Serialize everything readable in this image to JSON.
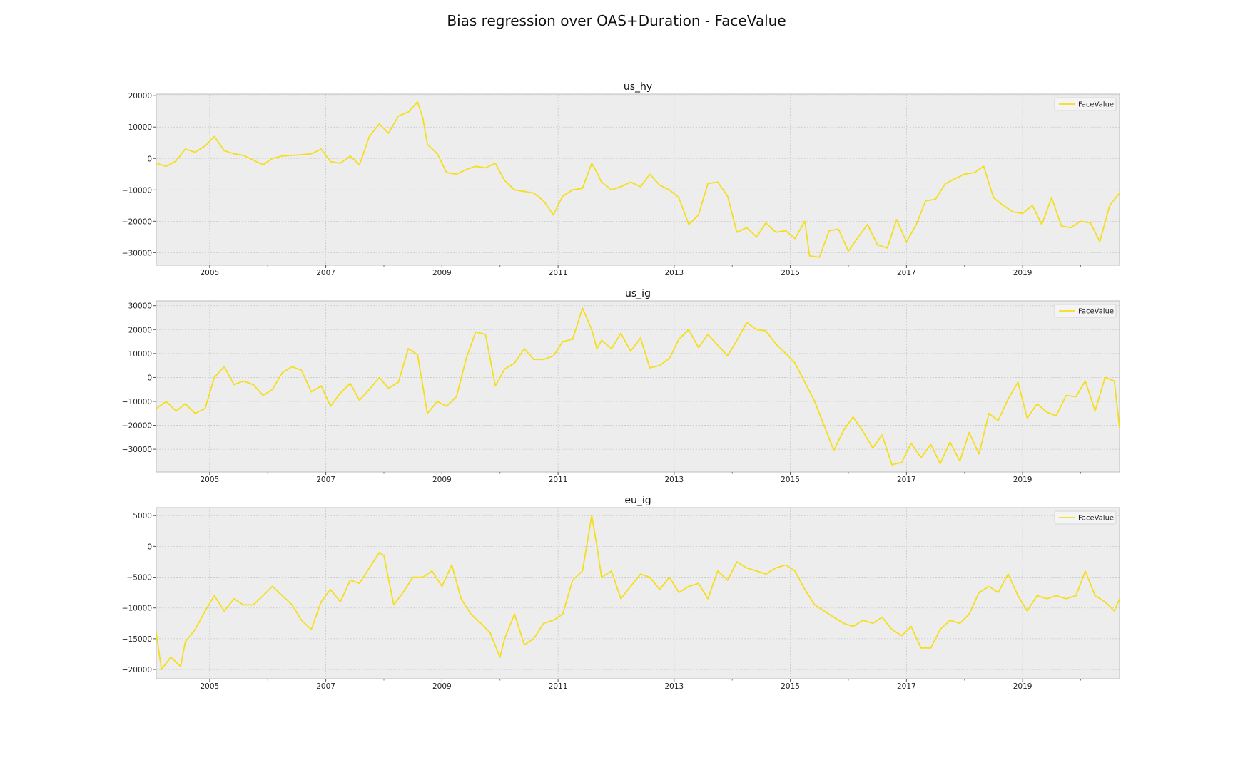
{
  "figure": {
    "title": "Bias regression over OAS+Duration - FaceValue"
  },
  "chart_data": [
    {
      "type": "line",
      "title": "us_hy",
      "legend": {
        "entries": [
          "FaceValue"
        ],
        "placement": "top-right"
      },
      "grid": true,
      "line_color": "#F5DE1B",
      "x_tick_labels": [
        "2005",
        "2007",
        "2009",
        "2011",
        "2013",
        "2015",
        "2017",
        "2019"
      ],
      "y_ticks": [
        20000,
        10000,
        0,
        -10000,
        -20000,
        -30000
      ],
      "y_tick_labels": [
        "20000",
        "10000",
        "0",
        "−10000",
        "−20000",
        "−30000"
      ],
      "xlim": [
        2004.08,
        2020.67
      ],
      "ylim": [
        -34000,
        20500
      ],
      "series": [
        {
          "name": "FaceValue",
          "x": [
            2004.08,
            2004.25,
            2004.42,
            2004.58,
            2004.75,
            2004.92,
            2005.08,
            2005.25,
            2005.42,
            2005.58,
            2005.75,
            2005.92,
            2006.08,
            2006.25,
            2006.42,
            2006.58,
            2006.75,
            2006.92,
            2007.08,
            2007.25,
            2007.42,
            2007.58,
            2007.75,
            2007.92,
            2008.08,
            2008.25,
            2008.42,
            2008.58,
            2008.67,
            2008.75,
            2008.92,
            2009.08,
            2009.25,
            2009.42,
            2009.58,
            2009.75,
            2009.92,
            2010.08,
            2010.25,
            2010.42,
            2010.58,
            2010.75,
            2010.92,
            2011.08,
            2011.25,
            2011.42,
            2011.58,
            2011.67,
            2011.75,
            2011.92,
            2012.08,
            2012.25,
            2012.42,
            2012.58,
            2012.75,
            2012.92,
            2013.08,
            2013.25,
            2013.42,
            2013.58,
            2013.75,
            2013.92,
            2014.08,
            2014.25,
            2014.42,
            2014.58,
            2014.75,
            2014.92,
            2015.08,
            2015.25,
            2015.33,
            2015.5,
            2015.67,
            2015.83,
            2016.0,
            2016.17,
            2016.33,
            2016.5,
            2016.67,
            2016.83,
            2017.0,
            2017.17,
            2017.33,
            2017.5,
            2017.67,
            2017.83,
            2018.0,
            2018.17,
            2018.33,
            2018.5,
            2018.67,
            2018.83,
            2019.0,
            2019.17,
            2019.33,
            2019.5,
            2019.67,
            2019.83,
            2020.0,
            2020.17,
            2020.33,
            2020.5,
            2020.67
          ],
          "y": [
            -1500,
            -2500,
            -800,
            3000,
            2000,
            4000,
            7000,
            2500,
            1500,
            1000,
            -500,
            -2000,
            0,
            800,
            1000,
            1200,
            1500,
            3000,
            -1000,
            -1500,
            800,
            -2000,
            7000,
            11000,
            8000,
            13500,
            14800,
            18000,
            13000,
            4500,
            1500,
            -4500,
            -5000,
            -3500,
            -2500,
            -3000,
            -1500,
            -7000,
            -10000,
            -10500,
            -11000,
            -13500,
            -18000,
            -12000,
            -10000,
            -9500,
            -1500,
            -4500,
            -7500,
            -10000,
            -9000,
            -7500,
            -9000,
            -5000,
            -8500,
            -10000,
            -12500,
            -21000,
            -18000,
            -8000,
            -7500,
            -12000,
            -23500,
            -22000,
            -25000,
            -20500,
            -23500,
            -23000,
            -25500,
            -20000,
            -31000,
            -31500,
            -23000,
            -22500,
            -29500,
            -25000,
            -21000,
            -27500,
            -28500,
            -19500,
            -26500,
            -21000,
            -13500,
            -13000,
            -8000,
            -6500,
            -5000,
            -4500,
            -2500,
            -12500,
            -15000,
            -17000,
            -17500,
            -15000,
            -21000,
            -12500,
            -21500,
            -22000,
            -20000,
            -20500,
            -26500,
            -15000,
            -11000
          ]
        }
      ]
    },
    {
      "type": "line",
      "title": "us_ig",
      "legend": {
        "entries": [
          "FaceValue"
        ],
        "placement": "top-right"
      },
      "grid": true,
      "line_color": "#F5DE1B",
      "x_tick_labels": [
        "2005",
        "2007",
        "2009",
        "2011",
        "2013",
        "2015",
        "2017",
        "2019"
      ],
      "y_ticks": [
        30000,
        20000,
        10000,
        0,
        -10000,
        -20000,
        -30000
      ],
      "y_tick_labels": [
        "30000",
        "20000",
        "10000",
        "0",
        "−10000",
        "−20000",
        "−30000"
      ],
      "xlim": [
        2004.08,
        2020.67
      ],
      "ylim": [
        -39500,
        32000
      ],
      "series": [
        {
          "name": "FaceValue",
          "x": [
            2004.08,
            2004.25,
            2004.42,
            2004.58,
            2004.75,
            2004.92,
            2005.08,
            2005.25,
            2005.42,
            2005.58,
            2005.75,
            2005.92,
            2006.08,
            2006.25,
            2006.42,
            2006.58,
            2006.75,
            2006.92,
            2007.08,
            2007.25,
            2007.42,
            2007.58,
            2007.75,
            2007.92,
            2008.08,
            2008.25,
            2008.42,
            2008.58,
            2008.75,
            2008.92,
            2009.08,
            2009.25,
            2009.42,
            2009.58,
            2009.75,
            2009.92,
            2010.08,
            2010.25,
            2010.42,
            2010.58,
            2010.75,
            2010.92,
            2011.08,
            2011.25,
            2011.42,
            2011.58,
            2011.67,
            2011.75,
            2011.92,
            2012.08,
            2012.25,
            2012.42,
            2012.58,
            2012.75,
            2012.92,
            2013.08,
            2013.25,
            2013.42,
            2013.58,
            2013.75,
            2013.92,
            2014.08,
            2014.25,
            2014.42,
            2014.58,
            2014.75,
            2014.92,
            2015.08,
            2015.25,
            2015.42,
            2015.58,
            2015.75,
            2015.92,
            2016.08,
            2016.25,
            2016.42,
            2016.58,
            2016.75,
            2016.92,
            2017.08,
            2017.25,
            2017.42,
            2017.58,
            2017.75,
            2017.92,
            2018.08,
            2018.25,
            2018.42,
            2018.58,
            2018.75,
            2018.92,
            2019.08,
            2019.25,
            2019.42,
            2019.58,
            2019.75,
            2019.92,
            2020.08,
            2020.25,
            2020.42,
            2020.58,
            2020.67
          ],
          "y": [
            -13000,
            -10000,
            -14000,
            -11000,
            -15000,
            -13000,
            0,
            4500,
            -3000,
            -1500,
            -3000,
            -7500,
            -5000,
            2000,
            4500,
            3000,
            -6000,
            -3500,
            -12000,
            -6500,
            -2500,
            -9500,
            -5000,
            0,
            -4500,
            -2000,
            12000,
            9500,
            -15000,
            -10000,
            -12000,
            -8000,
            8000,
            19000,
            18000,
            -3500,
            3500,
            6000,
            12000,
            7500,
            7500,
            9000,
            15000,
            16000,
            29000,
            20000,
            12000,
            15500,
            12000,
            18500,
            11000,
            16500,
            4000,
            5000,
            8000,
            16000,
            20000,
            12500,
            18000,
            13500,
            9000,
            15500,
            23000,
            20000,
            19500,
            14000,
            10000,
            6000,
            -2000,
            -10000,
            -20000,
            -30500,
            -22000,
            -16500,
            -22500,
            -29500,
            -24000,
            -36500,
            -35500,
            -27500,
            -33500,
            -28000,
            -36000,
            -27000,
            -35000,
            -23000,
            -32000,
            -15000,
            -18000,
            -9000,
            -2000,
            -17000,
            -11000,
            -14500,
            -16000,
            -7500,
            -8000,
            -1500,
            -14000,
            0,
            -1500,
            -21000
          ]
        }
      ]
    },
    {
      "type": "line",
      "title": "eu_ig",
      "legend": {
        "entries": [
          "FaceValue"
        ],
        "placement": "top-right"
      },
      "grid": true,
      "line_color": "#F5DE1B",
      "x_tick_labels": [
        "2005",
        "2007",
        "2009",
        "2011",
        "2013",
        "2015",
        "2017",
        "2019"
      ],
      "y_ticks": [
        5000,
        0,
        -5000,
        -10000,
        -15000,
        -20000
      ],
      "y_tick_labels": [
        "5000",
        "0",
        "−5000",
        "−10000",
        "−15000",
        "−20000"
      ],
      "xlim": [
        2004.08,
        2020.67
      ],
      "ylim": [
        -21500,
        6300
      ],
      "series": [
        {
          "name": "FaceValue",
          "x": [
            2004.08,
            2004.17,
            2004.33,
            2004.5,
            2004.58,
            2004.75,
            2004.92,
            2005.08,
            2005.25,
            2005.42,
            2005.58,
            2005.75,
            2005.92,
            2006.08,
            2006.25,
            2006.42,
            2006.58,
            2006.75,
            2006.92,
            2007.08,
            2007.25,
            2007.42,
            2007.58,
            2007.75,
            2007.92,
            2008.0,
            2008.17,
            2008.33,
            2008.5,
            2008.67,
            2008.83,
            2009.0,
            2009.17,
            2009.33,
            2009.5,
            2009.67,
            2009.83,
            2010.0,
            2010.08,
            2010.25,
            2010.42,
            2010.58,
            2010.75,
            2010.92,
            2011.08,
            2011.25,
            2011.42,
            2011.58,
            2011.67,
            2011.75,
            2011.92,
            2012.08,
            2012.25,
            2012.42,
            2012.58,
            2012.75,
            2012.92,
            2013.08,
            2013.25,
            2013.42,
            2013.58,
            2013.75,
            2013.92,
            2014.08,
            2014.25,
            2014.42,
            2014.58,
            2014.75,
            2014.92,
            2015.08,
            2015.25,
            2015.42,
            2015.58,
            2015.75,
            2015.92,
            2016.08,
            2016.25,
            2016.42,
            2016.58,
            2016.75,
            2016.92,
            2017.08,
            2017.25,
            2017.42,
            2017.58,
            2017.75,
            2017.92,
            2018.08,
            2018.25,
            2018.42,
            2018.58,
            2018.75,
            2018.92,
            2019.08,
            2019.25,
            2019.42,
            2019.58,
            2019.75,
            2019.92,
            2020.08,
            2020.25,
            2020.42,
            2020.58,
            2020.67
          ],
          "y": [
            -14000,
            -20000,
            -18000,
            -19500,
            -15500,
            -13500,
            -10500,
            -8000,
            -10500,
            -8500,
            -9500,
            -9500,
            -8000,
            -6500,
            -8000,
            -9500,
            -12000,
            -13500,
            -9000,
            -7000,
            -9000,
            -5500,
            -6000,
            -3500,
            -1000,
            -1500,
            -9500,
            -7500,
            -5000,
            -5000,
            -4000,
            -6500,
            -3000,
            -8500,
            -11000,
            -12500,
            -14000,
            -18000,
            -15000,
            -11000,
            -16000,
            -15000,
            -12500,
            -12000,
            -11000,
            -5500,
            -4000,
            5000,
            0,
            -5000,
            -4000,
            -8500,
            -6500,
            -4500,
            -5000,
            -7000,
            -5000,
            -7500,
            -6500,
            -6000,
            -8500,
            -4000,
            -5500,
            -2500,
            -3500,
            -4000,
            -4500,
            -3500,
            -3000,
            -4000,
            -7000,
            -9500,
            -10500,
            -11500,
            -12500,
            -13000,
            -12000,
            -12500,
            -11500,
            -13500,
            -14500,
            -13000,
            -16500,
            -16500,
            -13500,
            -12000,
            -12500,
            -11000,
            -7500,
            -6500,
            -7500,
            -4500,
            -8000,
            -10500,
            -8000,
            -8500,
            -8000,
            -8500,
            -8000,
            -4000,
            -8000,
            -9000,
            -10500,
            -8500
          ]
        }
      ]
    }
  ]
}
